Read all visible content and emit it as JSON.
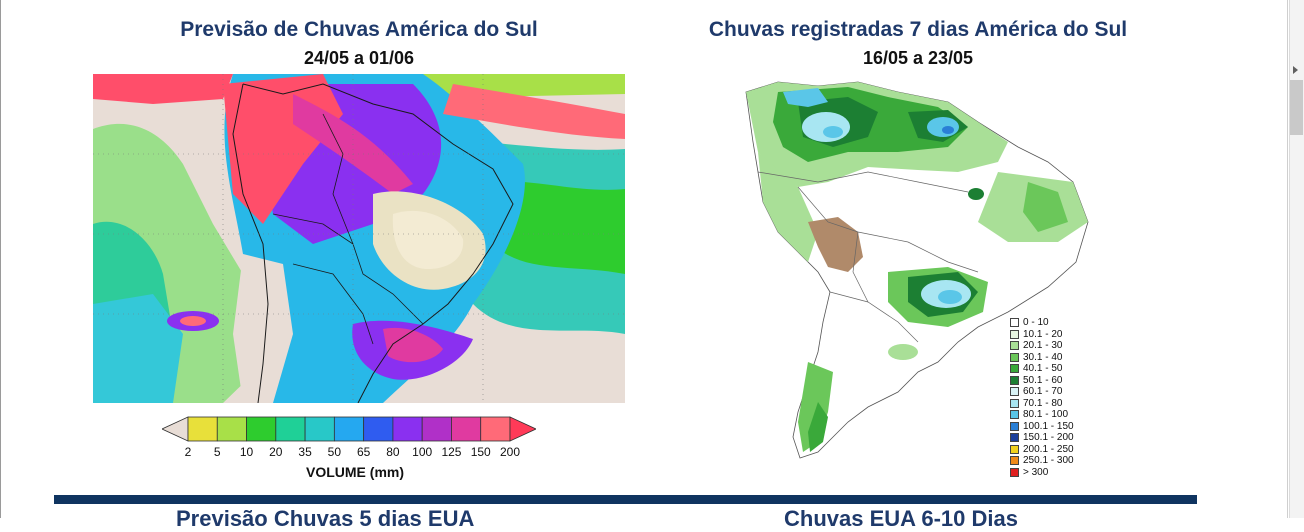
{
  "left_panel": {
    "title": "Previsão de Chuvas América do Sul",
    "period": "24/05 a 01/06",
    "colorbar": {
      "ticks": [
        "2",
        "5",
        "10",
        "20",
        "35",
        "50",
        "65",
        "80",
        "100",
        "125",
        "150",
        "200"
      ],
      "colors": [
        "#e8ddd6",
        "#e8e03a",
        "#a8e048",
        "#2ecc2e",
        "#1fd097",
        "#28c8c8",
        "#25a8f0",
        "#2f5cf0",
        "#8a30f0",
        "#b030c8",
        "#e03aa0",
        "#ff6a78",
        "#ff3a58"
      ],
      "unit_label": "VOLUME (mm)"
    }
  },
  "right_panel": {
    "title": "Chuvas registradas 7 dias América do Sul",
    "period": "16/05 a 23/05",
    "legend": [
      {
        "label": "0 - 10",
        "color": "#ffffff"
      },
      {
        "label": "10.1 - 20",
        "color": "#e8f6e2"
      },
      {
        "label": "20.1 - 30",
        "color": "#a9df97"
      },
      {
        "label": "30.1 - 40",
        "color": "#6bc75a"
      },
      {
        "label": "40.1 - 50",
        "color": "#3aa93a"
      },
      {
        "label": "50.1 - 60",
        "color": "#1c7f33"
      },
      {
        "label": "60.1 - 70",
        "color": "#d9f3f6"
      },
      {
        "label": "70.1 - 80",
        "color": "#a8e6f2"
      },
      {
        "label": "80.1 - 100",
        "color": "#5ac6e8"
      },
      {
        "label": "100.1 - 150",
        "color": "#2a7fd6"
      },
      {
        "label": "150.1 - 200",
        "color": "#1b3f9a"
      },
      {
        "label": "200.1 - 250",
        "color": "#f2d21e"
      },
      {
        "label": "250.1 - 300",
        "color": "#f08a1a"
      },
      {
        "label": "> 300",
        "color": "#e02020"
      }
    ]
  },
  "next_section": {
    "left_title": "Previsão Chuvas 5 dias EUA",
    "right_title": "Chuvas EUA 6-10 Dias"
  }
}
